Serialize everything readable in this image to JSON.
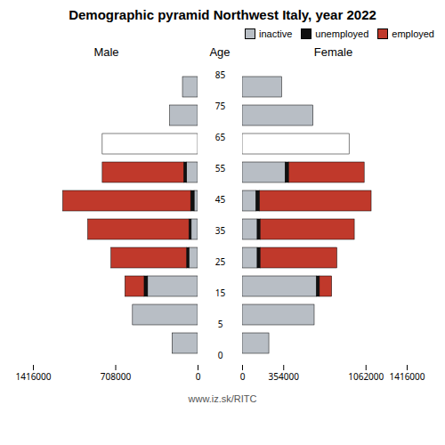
{
  "title": "Demographic pyramid Northwest Italy, year 2022",
  "subtitle": "www.iz.sk/RITC",
  "chart_data": [
    {
      "type": "bar",
      "orientation": "horizontal",
      "stacked": true,
      "title": "Male",
      "ylabel": "Age",
      "categories": [
        0,
        5,
        15,
        25,
        35,
        45,
        55,
        65,
        75,
        85
      ],
      "series": [
        {
          "name": "inactive",
          "color": "#b8bec5",
          "colors": [
            "#b8bec5",
            "#b8bec5",
            "#b8bec5",
            "#b8bec5",
            "#b8bec5",
            "#b8bec5",
            "#b8bec5",
            "#ffffff",
            "#b8bec5",
            "#b8bec5"
          ],
          "values": [
            220000,
            560000,
            430000,
            75000,
            55000,
            30000,
            95000,
            820000,
            240000,
            130000
          ]
        },
        {
          "name": "unemployed",
          "color": "#111111",
          "values": [
            0,
            0,
            30000,
            20000,
            20000,
            30000,
            25000,
            0,
            0,
            0
          ]
        },
        {
          "name": "employed",
          "color": "#c0392b",
          "values": [
            0,
            0,
            165000,
            650000,
            870000,
            1100000,
            700000,
            0,
            0,
            0
          ]
        }
      ],
      "xlim": [
        1416000,
        0
      ],
      "xticks": [
        1416000,
        708000,
        0
      ]
    },
    {
      "type": "bar",
      "orientation": "horizontal",
      "stacked": true,
      "title": "Female",
      "categories": [
        0,
        5,
        15,
        25,
        35,
        45,
        55,
        65,
        75,
        85
      ],
      "series": [
        {
          "name": "inactive",
          "color": "#b8bec5",
          "colors": [
            "#b8bec5",
            "#b8bec5",
            "#b8bec5",
            "#b8bec5",
            "#b8bec5",
            "#b8bec5",
            "#b8bec5",
            "#ffffff",
            "#b8bec5",
            "#b8bec5"
          ],
          "values": [
            230000,
            620000,
            640000,
            130000,
            130000,
            120000,
            370000,
            920000,
            610000,
            340000
          ]
        },
        {
          "name": "unemployed",
          "color": "#111111",
          "values": [
            0,
            0,
            25000,
            25000,
            25000,
            30000,
            30000,
            0,
            0,
            0
          ]
        },
        {
          "name": "employed",
          "color": "#c0392b",
          "values": [
            0,
            0,
            105000,
            660000,
            810000,
            960000,
            650000,
            0,
            0,
            0
          ]
        }
      ],
      "xlim": [
        0,
        1416000
      ],
      "xticks": [
        0,
        354000,
        1062000,
        1416000
      ],
      "legend": "upper right"
    }
  ]
}
